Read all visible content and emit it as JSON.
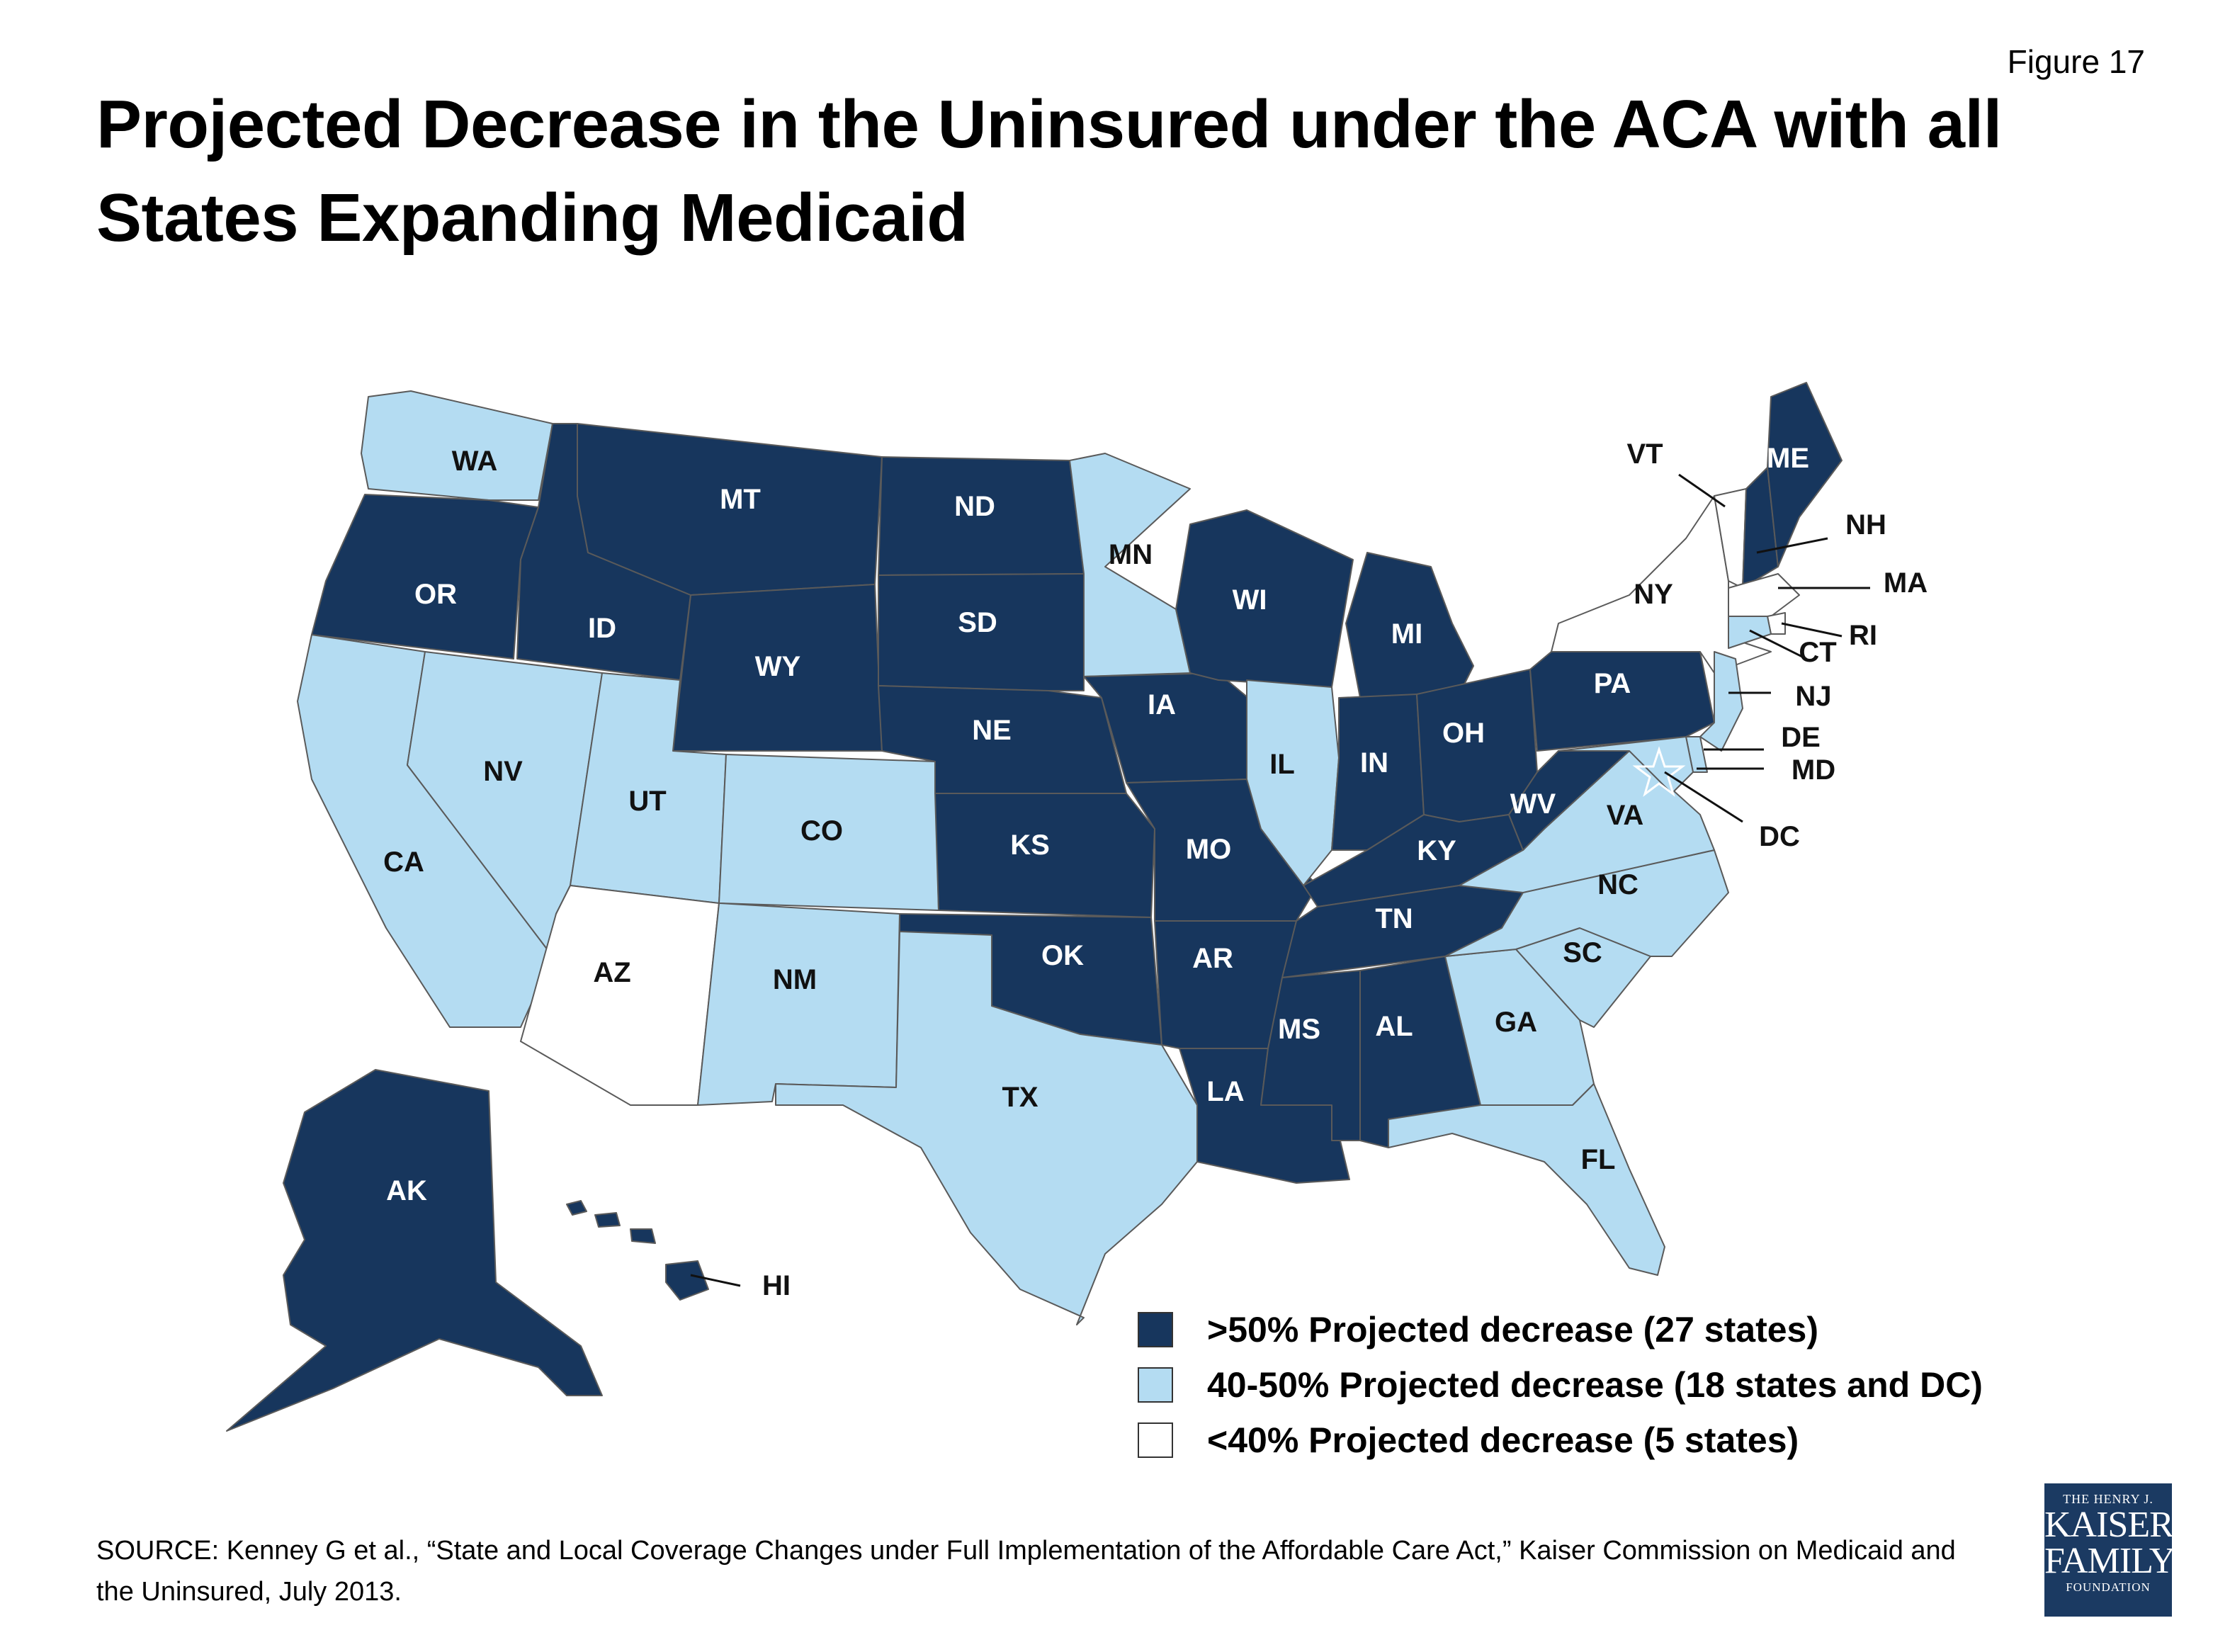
{
  "figure_label": "Figure 17",
  "title": "Projected Decrease in the Uninsured under the ACA with all States Expanding Medicaid",
  "colors": {
    "high": "#17365d",
    "mid": "#b4dcf2",
    "low": "#ffffff",
    "border": "#5a5a5a"
  },
  "legend": [
    {
      "category": "high",
      "label": ">50% Projected decrease (27 states)"
    },
    {
      "category": "mid",
      "label": "40-50% Projected decrease (18 states and DC)"
    },
    {
      "category": "low",
      "label": "<40% Projected decrease (5 states)"
    }
  ],
  "states": {
    "WA": "mid",
    "OR": "high",
    "CA": "mid",
    "ID": "high",
    "NV": "mid",
    "MT": "high",
    "WY": "high",
    "UT": "mid",
    "AZ": "low",
    "CO": "mid",
    "NM": "mid",
    "ND": "high",
    "SD": "high",
    "NE": "high",
    "KS": "high",
    "OK": "high",
    "TX": "mid",
    "MN": "mid",
    "IA": "high",
    "MO": "high",
    "AR": "high",
    "LA": "high",
    "WI": "high",
    "IL": "mid",
    "MI": "high",
    "IN": "high",
    "OH": "high",
    "KY": "high",
    "TN": "high",
    "MS": "high",
    "AL": "high",
    "GA": "mid",
    "FL": "mid",
    "SC": "mid",
    "NC": "mid",
    "VA": "mid",
    "WV": "high",
    "PA": "high",
    "NY": "low",
    "VT": "low",
    "NH": "high",
    "ME": "high",
    "MA": "low",
    "RI": "low",
    "CT": "mid",
    "NJ": "mid",
    "DE": "mid",
    "MD": "mid",
    "DC": "mid",
    "AK": "high",
    "HI": "high"
  },
  "source": "SOURCE:  Kenney G et al., “State and Local Coverage Changes under Full Implementation of the Affordable Care Act,” Kaiser Commission on Medicaid and the Uninsured, July 2013.",
  "logo": {
    "line1": "THE HENRY J.",
    "line2": "KAISER",
    "line3": "FAMILY",
    "line4": "FOUNDATION"
  }
}
